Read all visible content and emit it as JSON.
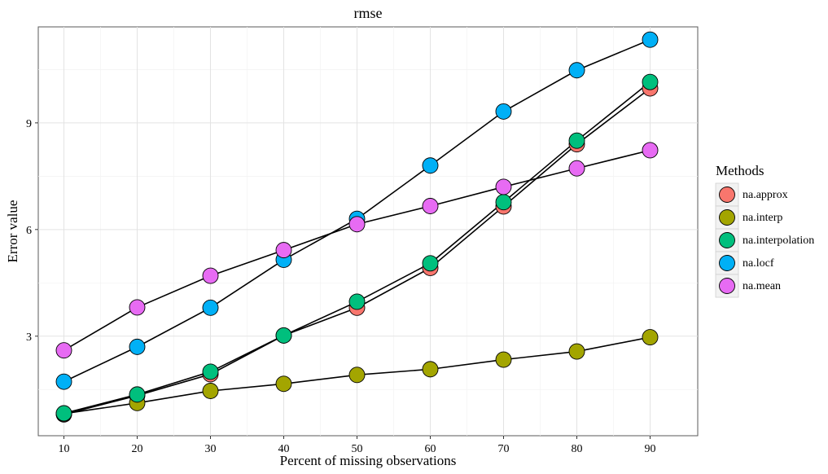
{
  "chart_data": {
    "type": "line",
    "title": "rmse",
    "xlabel": "Percent of missing observations",
    "ylabel": "Error value",
    "x": [
      10,
      20,
      30,
      40,
      50,
      60,
      70,
      80,
      90
    ],
    "xlim": [
      6.5,
      96.5
    ],
    "ylim": [
      0.2,
      11.7
    ],
    "xticks": [
      10,
      20,
      30,
      40,
      50,
      60,
      70,
      80,
      90
    ],
    "yticks": [
      3,
      6,
      9
    ],
    "grid": true,
    "legend": {
      "title": "Methods",
      "placement": "right"
    },
    "series": [
      {
        "name": "na.approx",
        "color": "#F8766D",
        "values": [
          0.8,
          1.33,
          1.93,
          3.02,
          3.8,
          4.92,
          6.65,
          8.4,
          9.97
        ]
      },
      {
        "name": "na.interp",
        "color": "#A3A500",
        "values": [
          0.82,
          1.12,
          1.46,
          1.66,
          1.91,
          2.07,
          2.34,
          2.57,
          2.97
        ]
      },
      {
        "name": "na.interpolation",
        "color": "#00BF7D",
        "values": [
          0.83,
          1.36,
          2.0,
          3.02,
          3.97,
          5.05,
          6.77,
          8.5,
          10.15
        ]
      },
      {
        "name": "na.locf",
        "color": "#00B0F6",
        "values": [
          1.72,
          2.7,
          3.8,
          5.15,
          6.3,
          7.8,
          9.32,
          10.48,
          11.34
        ]
      },
      {
        "name": "na.mean",
        "color": "#E76BF3",
        "values": [
          2.6,
          3.81,
          4.7,
          5.42,
          6.15,
          6.66,
          7.2,
          7.72,
          8.23
        ]
      }
    ]
  }
}
